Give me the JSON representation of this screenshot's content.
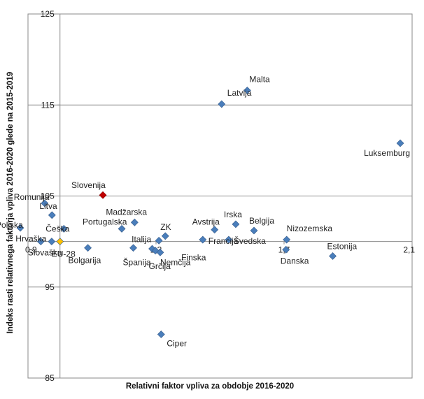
{
  "chart_data": {
    "type": "scatter",
    "xlabel": "Relativni faktor vpliva za obdobje 2016-2020",
    "ylabel": "Indeks rasti relativnega faktorja vpliva 2016-2020 glede na 2015-2019",
    "xlim": [
      0.9,
      2.1
    ],
    "ylim": [
      85,
      125
    ],
    "x_ticks": [
      "0,9",
      "1,3",
      "1,7",
      "2,1"
    ],
    "y_ticks": [
      "125",
      "115",
      "105",
      "95",
      "85"
    ],
    "x_ref": 1.0,
    "y_ref": 100,
    "grid": "horizontal",
    "points": [
      {
        "label": "Malta",
        "x": 1.585,
        "y": 116.6,
        "color": "#4a7ebb"
      },
      {
        "label": "Latvija",
        "x": 1.505,
        "y": 115.1,
        "color": "#4a7ebb"
      },
      {
        "label": "Luksemburg",
        "x": 2.063,
        "y": 110.8,
        "color": "#4a7ebb"
      },
      {
        "label": "Slovenija",
        "x": 1.134,
        "y": 105.1,
        "color": "#c00000",
        "label_color": "#e02020"
      },
      {
        "label": "Romunija",
        "x": 0.952,
        "y": 104.2,
        "color": "#4a7ebb"
      },
      {
        "label": "Litva",
        "x": 0.975,
        "y": 102.9,
        "color": "#4a7ebb"
      },
      {
        "label": "Madžarska",
        "x": 1.233,
        "y": 102.1,
        "color": "#4a7ebb"
      },
      {
        "label": "Irska",
        "x": 1.549,
        "y": 101.9,
        "color": "#4a7ebb"
      },
      {
        "label": "Poljska",
        "x": 0.876,
        "y": 101.5,
        "color": "#4a7ebb"
      },
      {
        "label": "Portugalska",
        "x": 1.193,
        "y": 101.4,
        "color": "#4a7ebb"
      },
      {
        "label": "Češka",
        "x": 1.012,
        "y": 101.4,
        "color": "#4a7ebb"
      },
      {
        "label": "Avstrija",
        "x": 1.483,
        "y": 101.3,
        "color": "#4a7ebb"
      },
      {
        "label": "Belgija",
        "x": 1.606,
        "y": 101.2,
        "color": "#4a7ebb"
      },
      {
        "label": "ZK",
        "x": 1.329,
        "y": 100.6,
        "color": "#4a7ebb"
      },
      {
        "label": "Hrvaška",
        "x": 0.94,
        "y": 100.0,
        "color": "#4a7ebb"
      },
      {
        "label": "Slovaška",
        "x": 0.974,
        "y": 100.0,
        "color": "#4a7ebb"
      },
      {
        "label": "EU-28",
        "x": 1.0,
        "y": 100.0,
        "color": "#ffc000",
        "label_color": "#f0b400"
      },
      {
        "label": "Italija",
        "x": 1.309,
        "y": 100.1,
        "color": "#4a7ebb"
      },
      {
        "label": "Francija",
        "x": 1.446,
        "y": 100.2,
        "color": "#4a7ebb"
      },
      {
        "label": "Švedska",
        "x": 1.527,
        "y": 100.2,
        "color": "#4a7ebb"
      },
      {
        "label": "Nizozemska",
        "x": 1.708,
        "y": 100.2,
        "color": "#4a7ebb"
      },
      {
        "label": "Bolgarija",
        "x": 1.087,
        "y": 99.3,
        "color": "#4a7ebb"
      },
      {
        "label": "Španija",
        "x": 1.229,
        "y": 99.3,
        "color": "#4a7ebb"
      },
      {
        "label": "Grčija",
        "x": 1.288,
        "y": 99.2,
        "color": "#4a7ebb"
      },
      {
        "label": "Finska",
        "x": 1.298,
        "y": 99.0,
        "color": "#4a7ebb"
      },
      {
        "label": "Nemčija",
        "x": 1.313,
        "y": 98.8,
        "color": "#4a7ebb"
      },
      {
        "label": "Danska",
        "x": 1.706,
        "y": 99.1,
        "color": "#4a7ebb"
      },
      {
        "label": "Estonija",
        "x": 1.852,
        "y": 98.4,
        "color": "#4a7ebb"
      },
      {
        "label": "Ciper",
        "x": 1.316,
        "y": 89.8,
        "color": "#4a7ebb"
      }
    ]
  }
}
